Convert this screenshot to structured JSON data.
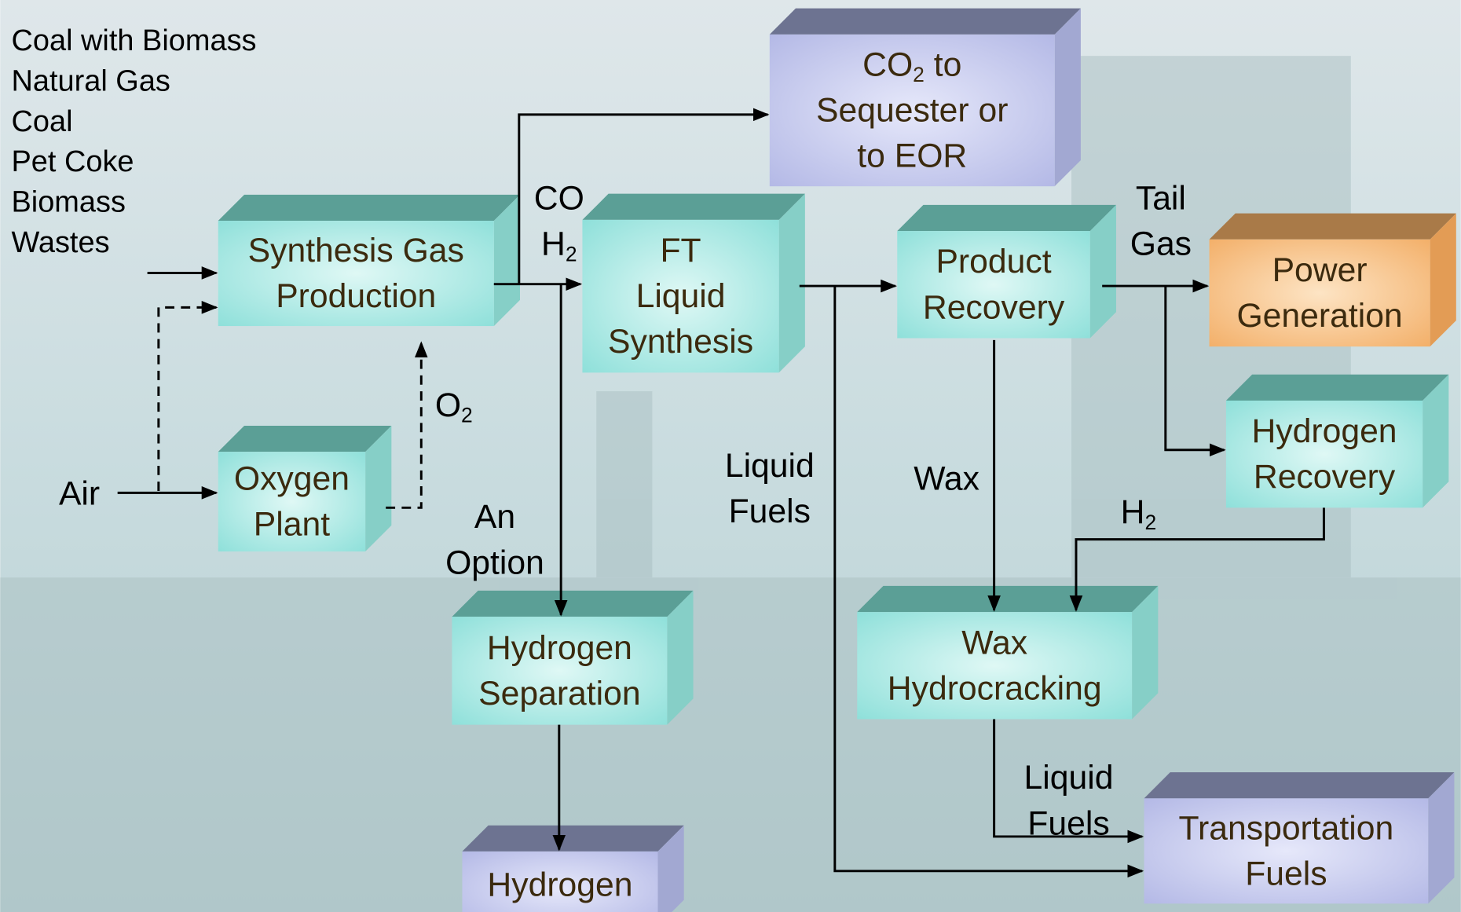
{
  "inputs": [
    "Coal with Biomass",
    "Natural Gas",
    "Coal",
    "Pet Coke",
    "Biomass",
    "Wastes"
  ],
  "nodes": [
    {
      "lines": [
        {
          "text": "CO",
          "sub": "2",
          "after": " to"
        },
        "Sequester or",
        "to EOR"
      ]
    },
    {
      "lines": [
        "Synthesis Gas",
        "Production"
      ]
    },
    {
      "lines": [
        "FT",
        "Liquid",
        "Synthesis"
      ]
    },
    {
      "lines": [
        "Product",
        "Recovery"
      ]
    },
    {
      "lines": [
        "Power",
        "Generation"
      ]
    },
    {
      "lines": [
        "Hydrogen",
        "Recovery"
      ]
    },
    {
      "lines": [
        "Oxygen",
        "Plant"
      ]
    },
    {
      "lines": [
        "Hydrogen",
        "Separation"
      ]
    },
    {
      "lines": [
        "Wax",
        "Hydrocracking"
      ]
    },
    {
      "lines": [
        "Transportation",
        "Fuels"
      ]
    },
    {
      "lines": [
        "Hydrogen"
      ]
    }
  ],
  "labels": [
    {
      "lines": [
        "Air"
      ]
    },
    {
      "lines": [
        {
          "text": "O",
          "sub": "2"
        }
      ]
    },
    {
      "lines": [
        "CO",
        {
          "text": "H",
          "sub": "2"
        }
      ]
    },
    {
      "lines": [
        "An",
        "Option"
      ]
    },
    {
      "lines": [
        "Liquid",
        "Fuels"
      ]
    },
    {
      "lines": [
        "Wax"
      ]
    },
    {
      "lines": [
        "Tail",
        "Gas"
      ]
    },
    {
      "lines": [
        {
          "text": "H",
          "sub": "2"
        }
      ]
    },
    {
      "lines": [
        "Liquid",
        "Fuels"
      ]
    }
  ]
}
